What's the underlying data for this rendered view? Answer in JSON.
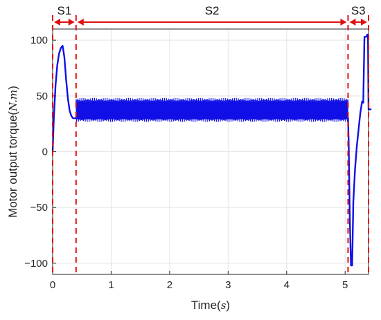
{
  "chart_data": {
    "type": "line",
    "xlabel": "Time",
    "xlabel_unit": "s",
    "ylabel": "Motor output torque",
    "ylabel_unit": "N.m",
    "xlim": [
      0,
      5.4
    ],
    "ylim": [
      -110,
      110
    ],
    "grid": true,
    "x_ticks": [
      0,
      1,
      2,
      3,
      4,
      5
    ],
    "y_ticks": [
      -100,
      -50,
      0,
      50,
      100
    ],
    "line_color": "#1010e6",
    "boundary_color": "#e01010",
    "series": [
      {
        "points": [
          [
            0.0,
            0
          ],
          [
            0.02,
            30
          ],
          [
            0.05,
            60
          ],
          [
            0.08,
            78
          ],
          [
            0.11,
            88
          ],
          [
            0.14,
            93
          ],
          [
            0.17,
            95
          ],
          [
            0.2,
            85
          ],
          [
            0.23,
            65
          ],
          [
            0.26,
            48
          ],
          [
            0.29,
            37
          ],
          [
            0.32,
            32
          ],
          [
            0.35,
            30
          ],
          [
            0.4,
            30
          ],
          [
            5.05,
            30
          ],
          [
            5.06,
            10
          ],
          [
            5.08,
            -60
          ],
          [
            5.1,
            -102
          ],
          [
            5.12,
            -102
          ],
          [
            5.14,
            -45
          ],
          [
            5.17,
            -15
          ],
          [
            5.2,
            5
          ],
          [
            5.23,
            20
          ],
          [
            5.26,
            35
          ],
          [
            5.29,
            45
          ],
          [
            5.31,
            44
          ],
          [
            5.33,
            103
          ],
          [
            5.36,
            103
          ],
          [
            5.38,
            105
          ],
          [
            5.39,
            105
          ],
          [
            5.4,
            38
          ],
          [
            5.45,
            38
          ]
        ],
        "oscillation": {
          "x_start": 0.4,
          "x_end": 5.05,
          "y_low": 28,
          "y_high": 47
        }
      }
    ],
    "stages": [
      {
        "label": "S1",
        "x_start": 0.0,
        "x_end": 0.4
      },
      {
        "label": "S2",
        "x_start": 0.4,
        "x_end": 5.05
      },
      {
        "label": "S3",
        "x_start": 5.05,
        "x_end": 5.4
      }
    ],
    "boundaries": [
      0.0,
      0.4,
      5.05,
      5.4
    ]
  }
}
